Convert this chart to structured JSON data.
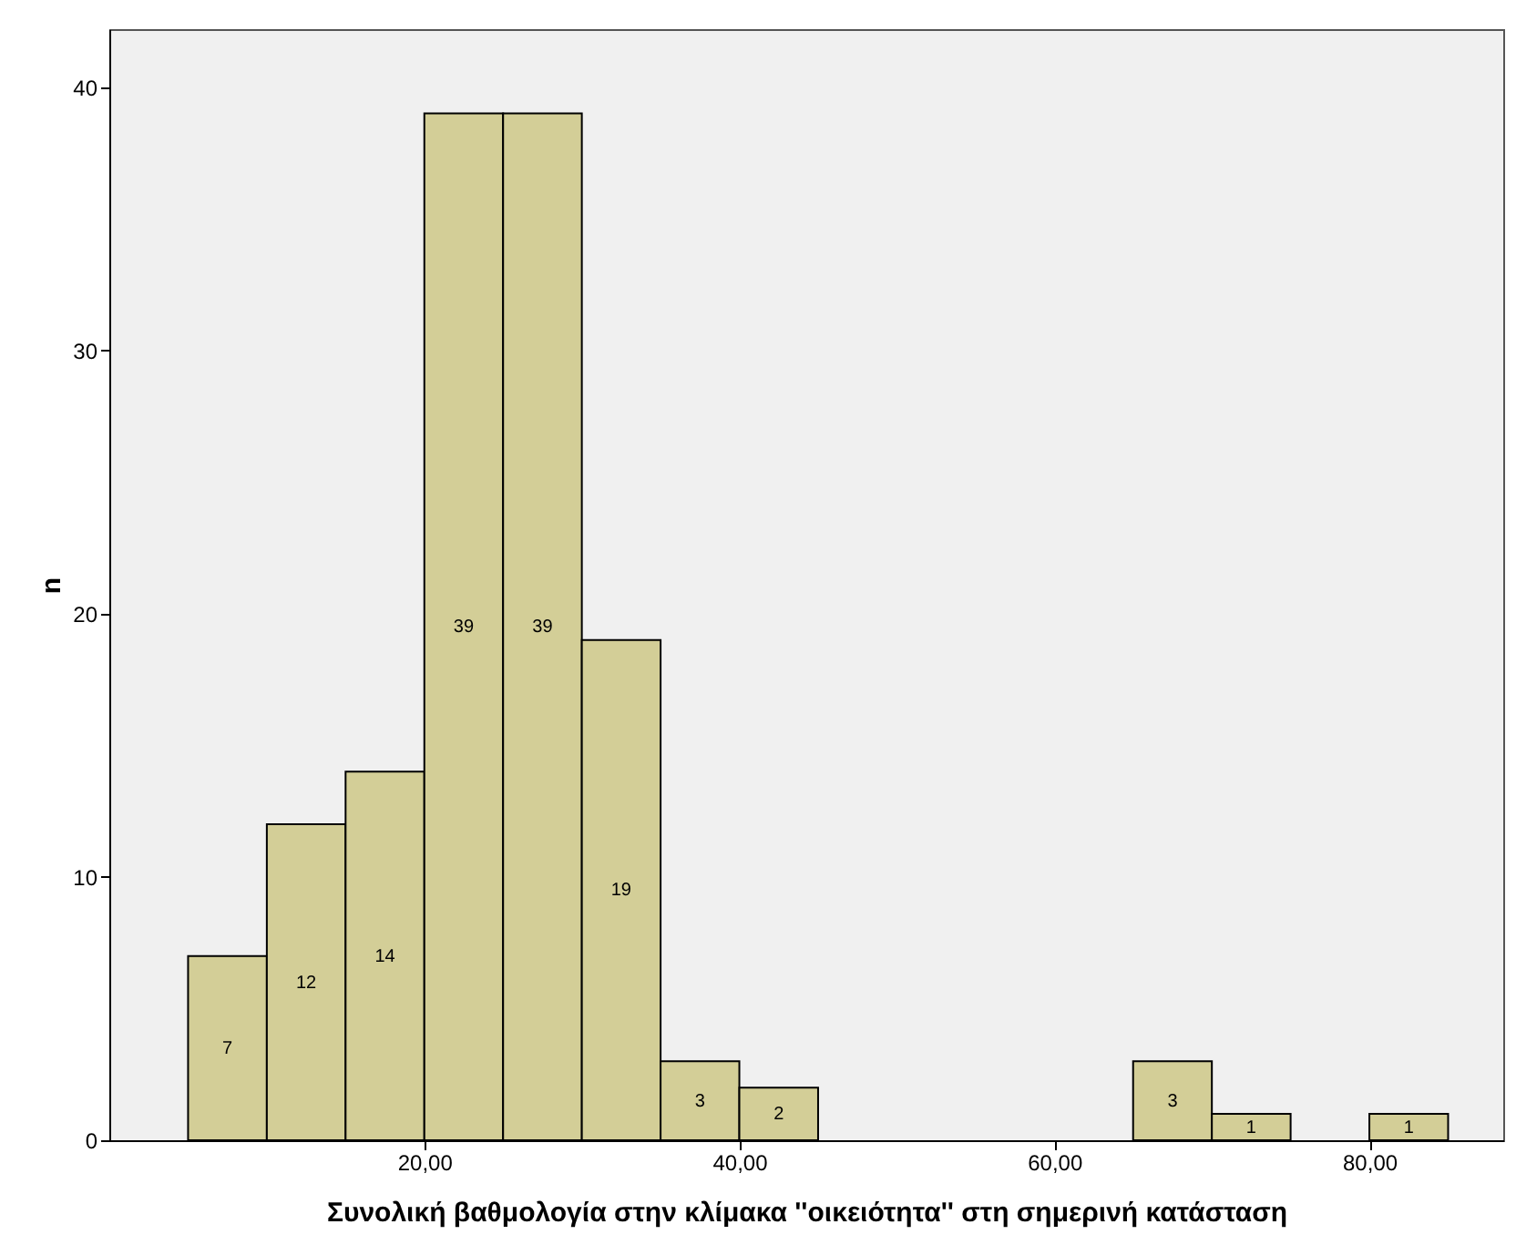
{
  "chart_data": {
    "type": "histogram",
    "xlabel": "Συνολική βαθμολογία στην κλίμακα ''οικειότητα'' στη σημερινή κατάσταση",
    "ylabel": "n",
    "bins": [
      5,
      10,
      15,
      20,
      25,
      30,
      35,
      40,
      45,
      50,
      55,
      60,
      65,
      70,
      75,
      80,
      85
    ],
    "values": [
      7,
      12,
      14,
      39,
      39,
      19,
      3,
      2,
      0,
      0,
      0,
      0,
      3,
      1,
      0,
      1
    ],
    "color": "#d3ce97",
    "xlim": [
      0,
      88.5
    ],
    "xticks": [
      {
        "value": 20,
        "label": "20,00"
      },
      {
        "value": 40,
        "label": "40,00"
      },
      {
        "value": 60,
        "label": "60,00"
      },
      {
        "value": 80,
        "label": "80,00"
      }
    ],
    "ylim": [
      0,
      42.2
    ],
    "yticks": [
      0,
      10,
      20,
      30,
      40
    ],
    "value_labels": [
      "7",
      "12",
      "14",
      "39",
      "39",
      "19",
      "3",
      "2",
      null,
      null,
      null,
      null,
      "3",
      "1",
      null,
      "1"
    ],
    "grid": false
  }
}
